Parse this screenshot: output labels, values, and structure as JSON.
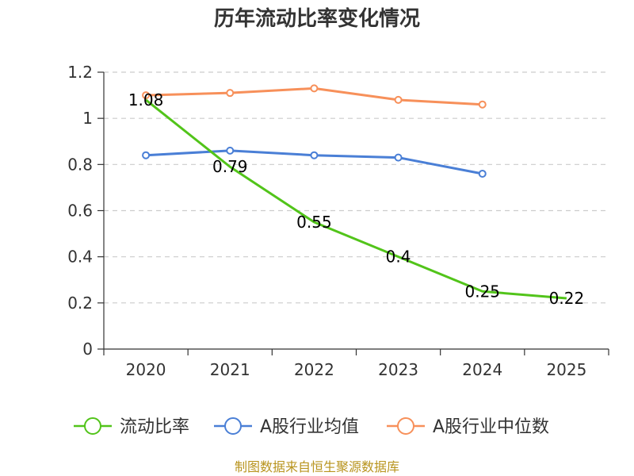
{
  "chart_data": {
    "type": "line",
    "title": "历年流动比率变化情况",
    "categories": [
      "2020",
      "2021",
      "2022",
      "2023",
      "2024",
      "2025"
    ],
    "ylim": [
      0,
      1.2
    ],
    "yticks": [
      "0",
      "0.2",
      "0.4",
      "0.6",
      "0.8",
      "1",
      "1.2"
    ],
    "ytick_values": [
      0,
      0.2,
      0.4,
      0.6,
      0.8,
      1.0,
      1.2
    ],
    "grid": true,
    "legend_position": "bottom",
    "series": [
      {
        "name": "流动比率",
        "color": "#52c41a",
        "values": [
          1.08,
          0.79,
          0.55,
          0.4,
          0.25,
          0.22
        ],
        "labels": [
          "1.08",
          "0.79",
          "0.55",
          "0.4",
          "0.25",
          "0.22"
        ],
        "markers": false
      },
      {
        "name": "A股行业均值",
        "color": "#4a7fd6",
        "values": [
          0.84,
          0.86,
          0.84,
          0.83,
          0.76,
          null
        ],
        "markers": true
      },
      {
        "name": "A股行业中位数",
        "color": "#f7905a",
        "values": [
          1.1,
          1.11,
          1.13,
          1.08,
          1.06,
          null
        ],
        "markers": true
      }
    ],
    "source": "制图数据来自恒生聚源数据库"
  }
}
